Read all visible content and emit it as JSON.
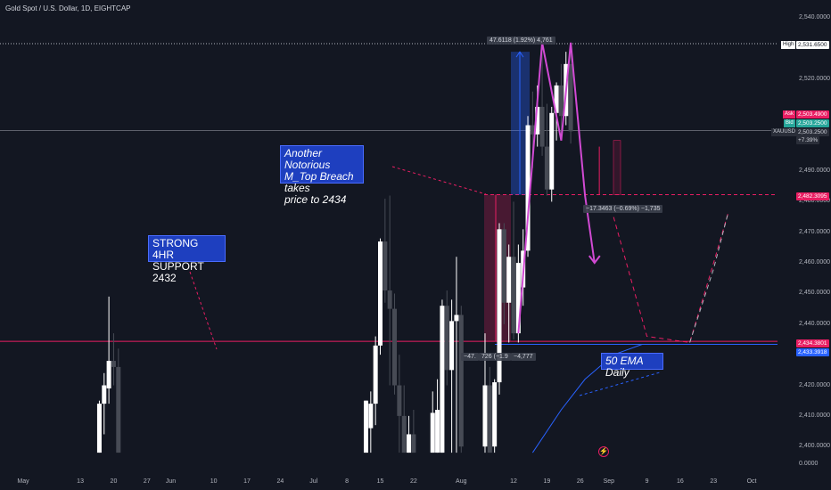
{
  "header": {
    "title": "Gold Spot / U.S. Dollar, 1D, EIGHTCAP"
  },
  "colors": {
    "background": "#131722",
    "up": "#ffffff",
    "down": "#474b55",
    "accent_red": "#e91e63",
    "ema_blue": "#2962ff",
    "note_box": "#1e3fbf"
  },
  "price_axis": {
    "ticks": [
      {
        "label": "2,540.0000",
        "value": 2540
      },
      {
        "label": "2,520.0000",
        "value": 2520
      },
      {
        "label": "2,490.0000",
        "value": 2490
      },
      {
        "label": "2,480.0000",
        "value": 2480
      },
      {
        "label": "2,470.0000",
        "value": 2470
      },
      {
        "label": "2,460.0000",
        "value": 2460
      },
      {
        "label": "2,450.0000",
        "value": 2450
      },
      {
        "label": "2,440.0000",
        "value": 2440
      },
      {
        "label": "2,420.0000",
        "value": 2420
      },
      {
        "label": "2,410.0000",
        "value": 2410
      },
      {
        "label": "2,400.0000",
        "value": 2400
      }
    ],
    "zero_label": "0.0000",
    "tags": {
      "high_key": "High",
      "high_value": "2,531.6500",
      "ask_key": "Ask",
      "ask_value": "2,503.4900",
      "bid_key": "Bid",
      "bid_value": "2,503.2500",
      "symbol": "XAUUSD",
      "last_value": "2,503.2500",
      "change": "+7.39%",
      "level_red": "2,482.3095",
      "level_support": "2,434.3801",
      "level_ema": "2,433.3918"
    }
  },
  "time_axis": [
    {
      "label": "May",
      "day": 0
    },
    {
      "label": "13",
      "day": 12
    },
    {
      "label": "20",
      "day": 19
    },
    {
      "label": "27",
      "day": 26
    },
    {
      "label": "Jun",
      "day": 31
    },
    {
      "label": "10",
      "day": 40
    },
    {
      "label": "17",
      "day": 47
    },
    {
      "label": "24",
      "day": 54
    },
    {
      "label": "Jul",
      "day": 61
    },
    {
      "label": "8",
      "day": 68
    },
    {
      "label": "15",
      "day": 75
    },
    {
      "label": "22",
      "day": 82
    },
    {
      "label": "Aug",
      "day": 92
    },
    {
      "label": "12",
      "day": 103
    },
    {
      "label": "19",
      "day": 110
    },
    {
      "label": "26",
      "day": 117
    },
    {
      "label": "Sep",
      "day": 123
    },
    {
      "label": "9",
      "day": 131
    },
    {
      "label": "16",
      "day": 138
    },
    {
      "label": "23",
      "day": 145
    },
    {
      "label": "Oct",
      "day": 153
    }
  ],
  "annotations": {
    "top_breach": [
      "Another Notorious",
      "M_Top Breach takes",
      "price to 2434"
    ],
    "support": [
      "STRONG 4HR",
      "SUPPORT 2432"
    ],
    "ema": "50 EMA Daily",
    "measure_up": "47.6118 (1.92%) 4,761",
    "measure_down_left": "−47.",
    "measure_down_right": "726 (−1.9",
    "measure_down_end": "−4,777",
    "measure_small": "−17.3463 (−0.69%) −1,735",
    "flash_icon": "lightning-icon"
  },
  "chart_data": {
    "type": "candlestick",
    "title": "Gold Spot / U.S. Dollar, 1D, EIGHTCAP",
    "ylim": [
      2398,
      2545
    ],
    "levels": {
      "high": 2531.65,
      "last": 2503.25,
      "resistance": 2482.3095,
      "support": 2434.3801,
      "ema50": 2433.3918
    },
    "candles": [
      {
        "day": 16,
        "o": 2398,
        "h": 2415,
        "l": 2398,
        "c": 2414
      },
      {
        "day": 17,
        "o": 2414,
        "h": 2424,
        "l": 2404,
        "c": 2420
      },
      {
        "day": 18,
        "o": 2419,
        "h": 2449,
        "l": 2414,
        "c": 2428
      },
      {
        "day": 19,
        "o": 2428,
        "h": 2437,
        "l": 2420,
        "c": 2426
      },
      {
        "day": 20,
        "o": 2426,
        "h": 2432,
        "l": 2398,
        "c": 2398
      },
      {
        "day": 72,
        "o": 2398,
        "h": 2415,
        "l": 2398,
        "c": 2415
      },
      {
        "day": 73,
        "o": 2406,
        "h": 2418,
        "l": 2398,
        "c": 2414
      },
      {
        "day": 74,
        "o": 2414,
        "h": 2436,
        "l": 2407,
        "c": 2433
      },
      {
        "day": 75,
        "o": 2433,
        "h": 2468,
        "l": 2430,
        "c": 2467
      },
      {
        "day": 76,
        "o": 2467,
        "h": 2481,
        "l": 2447,
        "c": 2451
      },
      {
        "day": 77,
        "o": 2451,
        "h": 2482,
        "l": 2420,
        "c": 2445
      },
      {
        "day": 78,
        "o": 2445,
        "h": 2450,
        "l": 2417,
        "c": 2420
      },
      {
        "day": 79,
        "o": 2420,
        "h": 2430,
        "l": 2398,
        "c": 2410
      },
      {
        "day": 80,
        "o": 2410,
        "h": 2420,
        "l": 2398,
        "c": 2398
      },
      {
        "day": 81,
        "o": 2398,
        "h": 2410,
        "l": 2398,
        "c": 2404
      },
      {
        "day": 82,
        "o": 2404,
        "h": 2412,
        "l": 2398,
        "c": 2398
      },
      {
        "day": 86,
        "o": 2398,
        "h": 2418,
        "l": 2398,
        "c": 2411
      },
      {
        "day": 87,
        "o": 2398,
        "h": 2422,
        "l": 2398,
        "c": 2412
      },
      {
        "day": 88,
        "o": 2398,
        "h": 2448,
        "l": 2398,
        "c": 2446
      },
      {
        "day": 89,
        "o": 2446,
        "h": 2451,
        "l": 2420,
        "c": 2425
      },
      {
        "day": 90,
        "o": 2425,
        "h": 2448,
        "l": 2398,
        "c": 2441
      },
      {
        "day": 91,
        "o": 2441,
        "h": 2462,
        "l": 2398,
        "c": 2443
      },
      {
        "day": 92,
        "o": 2443,
        "h": 2446,
        "l": 2398,
        "c": 2400
      },
      {
        "day": 97,
        "o": 2400,
        "h": 2437,
        "l": 2398,
        "c": 2420
      },
      {
        "day": 98,
        "o": 2420,
        "h": 2426,
        "l": 2398,
        "c": 2398
      },
      {
        "day": 99,
        "o": 2400,
        "h": 2422,
        "l": 2398,
        "c": 2421
      },
      {
        "day": 100,
        "o": 2421,
        "h": 2473,
        "l": 2417,
        "c": 2471
      },
      {
        "day": 101,
        "o": 2471,
        "h": 2473,
        "l": 2440,
        "c": 2447
      },
      {
        "day": 102,
        "o": 2447,
        "h": 2466,
        "l": 2434,
        "c": 2462
      },
      {
        "day": 103,
        "o": 2462,
        "h": 2480,
        "l": 2435,
        "c": 2437
      },
      {
        "day": 104,
        "o": 2437,
        "h": 2466,
        "l": 2434,
        "c": 2460
      },
      {
        "day": 105,
        "o": 2452,
        "h": 2471,
        "l": 2446,
        "c": 2464
      },
      {
        "day": 106,
        "o": 2464,
        "h": 2508,
        "l": 2462,
        "c": 2505
      },
      {
        "day": 107,
        "o": 2505,
        "h": 2516,
        "l": 2491,
        "c": 2502
      },
      {
        "day": 108,
        "o": 2502,
        "h": 2518,
        "l": 2498,
        "c": 2511
      },
      {
        "day": 109,
        "o": 2511,
        "h": 2532,
        "l": 2495,
        "c": 2498
      },
      {
        "day": 110,
        "o": 2498,
        "h": 2512,
        "l": 2482,
        "c": 2484
      },
      {
        "day": 111,
        "o": 2484,
        "h": 2511,
        "l": 2480,
        "c": 2509
      },
      {
        "day": 112,
        "o": 2509,
        "h": 2519,
        "l": 2500,
        "c": 2518
      },
      {
        "day": 113,
        "o": 2518,
        "h": 2525,
        "l": 2502,
        "c": 2508
      },
      {
        "day": 114,
        "o": 2508,
        "h": 2529,
        "l": 2505,
        "c": 2525
      },
      {
        "day": 115,
        "o": 2525,
        "h": 2529,
        "l": 2499,
        "c": 2503
      }
    ]
  }
}
